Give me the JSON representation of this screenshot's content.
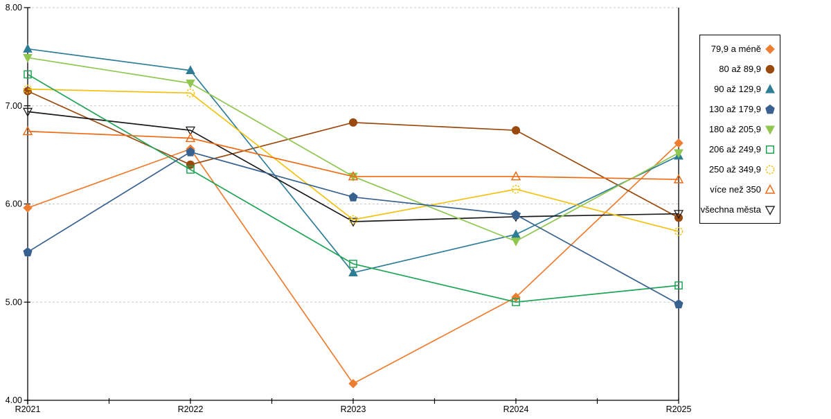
{
  "chart_data": {
    "type": "line",
    "title": "",
    "categories": [
      "R2021",
      "R2022",
      "R2023",
      "R2024",
      "R2025"
    ],
    "series": [
      {
        "name": "79,9 a méně",
        "color": "#ED7D31",
        "marker": "diamond",
        "values": [
          5.96,
          6.56,
          4.17,
          5.05,
          6.62
        ]
      },
      {
        "name": "80 až 89,9",
        "color": "#9A4A0E",
        "marker": "circle",
        "values": [
          7.15,
          6.4,
          6.83,
          6.75,
          5.86
        ]
      },
      {
        "name": "90 až 129,9",
        "color": "#2E7D96",
        "marker": "triangle-up",
        "values": [
          7.58,
          7.36,
          5.3,
          5.69,
          6.49
        ]
      },
      {
        "name": "130 až 179,9",
        "color": "#38618F",
        "marker": "pentagon",
        "values": [
          5.51,
          6.53,
          6.07,
          5.89,
          4.98
        ]
      },
      {
        "name": "180 až 205,9",
        "color": "#8FC750",
        "marker": "triangle-down",
        "values": [
          7.49,
          7.23,
          6.28,
          5.62,
          6.52
        ]
      },
      {
        "name": "206 až 249,9",
        "color": "#21A457",
        "marker": "square-hollow",
        "values": [
          7.32,
          6.35,
          5.39,
          5.0,
          5.17
        ]
      },
      {
        "name": "250 až 349,9",
        "color": "#F3C211",
        "marker": "circle-dashed",
        "values": [
          7.17,
          7.13,
          5.84,
          6.15,
          5.72
        ]
      },
      {
        "name": "více než 350",
        "color": "#ED6B15",
        "marker": "triangle-up-hollow",
        "values": [
          6.74,
          6.67,
          6.28,
          6.28,
          6.25
        ]
      },
      {
        "name": "všechna města",
        "color": "#1A1A1A",
        "marker": "triangle-down-hollow",
        "values": [
          6.94,
          6.75,
          5.82,
          5.87,
          5.9
        ]
      }
    ],
    "ylim": [
      4,
      8
    ],
    "ytick_labels": [
      "4.00",
      "5.00",
      "6.00",
      "7.00",
      "8.00"
    ],
    "grid": "horizontal-dashed",
    "legend_position": "right",
    "draw_order": [
      0,
      1,
      2,
      8,
      6,
      5,
      4,
      3,
      7
    ]
  },
  "colors": {
    "axis": "#000000",
    "grid": "#C9C9C9",
    "background": "#FFFFFF",
    "tick_text": "#000000"
  }
}
